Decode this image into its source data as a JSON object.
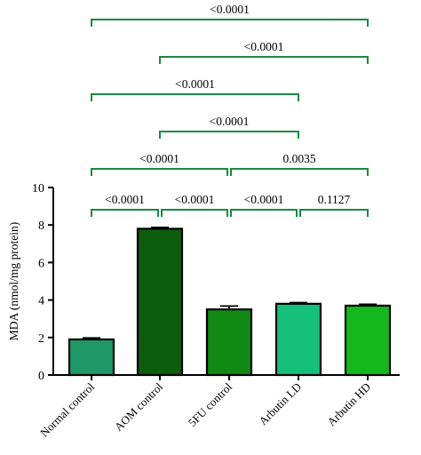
{
  "chart_data": {
    "type": "bar",
    "categories": [
      "Normal control",
      "AOM control",
      "5FU control",
      "Arbutin LD",
      "Arbutin HD"
    ],
    "values": [
      1.9,
      7.8,
      3.5,
      3.8,
      3.7
    ],
    "errors": [
      0.08,
      0.07,
      0.18,
      0.06,
      0.07
    ],
    "bar_colors": [
      "#1e9868",
      "#0c5c0c",
      "#108a12",
      "#14c07a",
      "#14b81a"
    ],
    "bracket_color": "#1a8a40",
    "ylabel": "MDA (nmol/mg protein)",
    "ylim": [
      0,
      10
    ],
    "yticks": [
      0,
      2,
      4,
      6,
      8,
      10
    ],
    "comparisons": [
      {
        "from": 0,
        "to": 1,
        "label": "<0.0001"
      },
      {
        "from": 1,
        "to": 2,
        "label": "<0.0001"
      },
      {
        "from": 2,
        "to": 3,
        "label": "<0.0001"
      },
      {
        "from": 3,
        "to": 4,
        "label": "0.1127"
      },
      {
        "from": 0,
        "to": 2,
        "label": "<0.0001"
      },
      {
        "from": 2,
        "to": 4,
        "label": "0.0035"
      },
      {
        "from": 1,
        "to": 3,
        "label": "<0.0001"
      },
      {
        "from": 0,
        "to": 3,
        "label": "<0.0001"
      },
      {
        "from": 1,
        "to": 4,
        "label": "<0.0001"
      },
      {
        "from": 0,
        "to": 4,
        "label": "<0.0001"
      }
    ]
  }
}
